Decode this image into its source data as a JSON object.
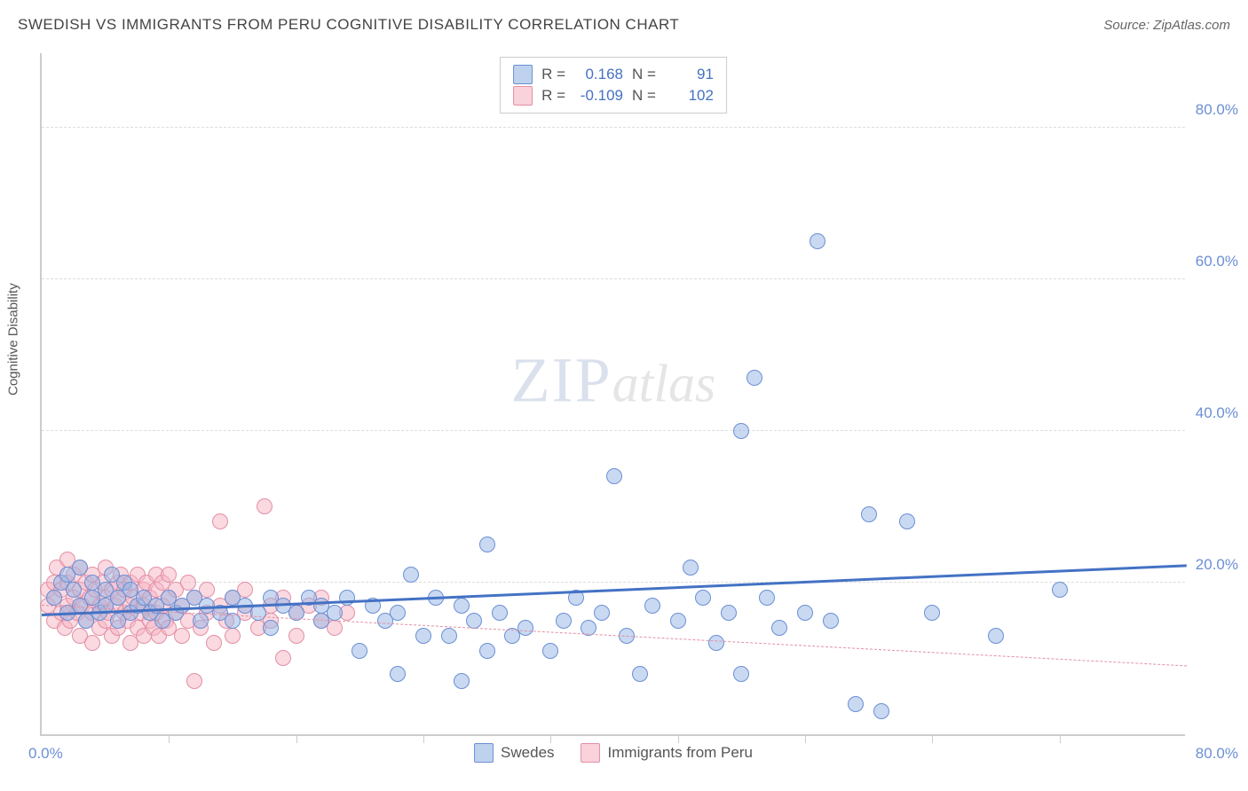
{
  "title": "SWEDISH VS IMMIGRANTS FROM PERU COGNITIVE DISABILITY CORRELATION CHART",
  "source_prefix": "Source: ",
  "source_name": "ZipAtlas.com",
  "ylabel": "Cognitive Disability",
  "watermark_zip": "ZIP",
  "watermark_atlas": "atlas",
  "chart": {
    "type": "scatter",
    "xlim": [
      0,
      90
    ],
    "ylim": [
      0,
      90
    ],
    "xtick_positions": [
      10,
      20,
      30,
      40,
      50,
      60,
      70,
      80
    ],
    "ytick_values": [
      20,
      40,
      60,
      80
    ],
    "ytick_labels": [
      "20.0%",
      "40.0%",
      "60.0%",
      "80.0%"
    ],
    "x_origin_label": "0.0%",
    "x_max_label": "80.0%",
    "background_color": "#ffffff",
    "grid_color": "#dddddd",
    "axis_color": "#cccccc",
    "label_color": "#6b8fd4",
    "text_color": "#555555",
    "title_fontsize": 17,
    "label_fontsize": 15,
    "tick_fontsize": 17,
    "marker_size": 18
  },
  "series": {
    "swedes": {
      "label": "Swedes",
      "color_fill": "rgba(147,180,227,0.5)",
      "color_stroke": "#6b8fd4",
      "trend_color": "#4472c4",
      "trend_width": 3,
      "trend_style": "solid",
      "R": "0.168",
      "N": "91",
      "trend": {
        "x1": 0,
        "y1": 15.5,
        "x2": 90,
        "y2": 22.0
      },
      "points": [
        [
          1,
          18
        ],
        [
          1.5,
          20
        ],
        [
          2,
          16
        ],
        [
          2,
          21
        ],
        [
          2.5,
          19
        ],
        [
          3,
          17
        ],
        [
          3,
          22
        ],
        [
          3.5,
          15
        ],
        [
          4,
          18
        ],
        [
          4,
          20
        ],
        [
          4.5,
          16
        ],
        [
          5,
          19
        ],
        [
          5,
          17
        ],
        [
          5.5,
          21
        ],
        [
          6,
          15
        ],
        [
          6,
          18
        ],
        [
          6.5,
          20
        ],
        [
          7,
          16
        ],
        [
          7,
          19
        ],
        [
          7.5,
          17
        ],
        [
          8,
          18
        ],
        [
          8.5,
          16
        ],
        [
          9,
          17
        ],
        [
          9.5,
          15
        ],
        [
          10,
          18
        ],
        [
          10.5,
          16
        ],
        [
          11,
          17
        ],
        [
          12,
          18
        ],
        [
          12.5,
          15
        ],
        [
          13,
          17
        ],
        [
          14,
          16
        ],
        [
          15,
          18
        ],
        [
          15,
          15
        ],
        [
          16,
          17
        ],
        [
          17,
          16
        ],
        [
          18,
          18
        ],
        [
          18,
          14
        ],
        [
          19,
          17
        ],
        [
          20,
          16
        ],
        [
          21,
          18
        ],
        [
          22,
          15
        ],
        [
          22,
          17
        ],
        [
          23,
          16
        ],
        [
          24,
          18
        ],
        [
          25,
          11
        ],
        [
          26,
          17
        ],
        [
          27,
          15
        ],
        [
          28,
          16
        ],
        [
          28,
          8
        ],
        [
          29,
          21
        ],
        [
          30,
          13
        ],
        [
          31,
          18
        ],
        [
          32,
          13
        ],
        [
          33,
          17
        ],
        [
          33,
          7
        ],
        [
          34,
          15
        ],
        [
          35,
          11
        ],
        [
          35,
          25
        ],
        [
          36,
          16
        ],
        [
          37,
          13
        ],
        [
          38,
          14
        ],
        [
          40,
          11
        ],
        [
          41,
          15
        ],
        [
          42,
          18
        ],
        [
          43,
          14
        ],
        [
          44,
          16
        ],
        [
          45,
          34
        ],
        [
          46,
          13
        ],
        [
          47,
          8
        ],
        [
          48,
          17
        ],
        [
          50,
          15
        ],
        [
          51,
          22
        ],
        [
          52,
          18
        ],
        [
          53,
          12
        ],
        [
          54,
          16
        ],
        [
          55,
          40
        ],
        [
          55,
          8
        ],
        [
          56,
          47
        ],
        [
          57,
          18
        ],
        [
          58,
          14
        ],
        [
          60,
          16
        ],
        [
          61,
          65
        ],
        [
          62,
          15
        ],
        [
          64,
          4
        ],
        [
          65,
          29
        ],
        [
          66,
          3
        ],
        [
          68,
          28
        ],
        [
          70,
          16
        ],
        [
          75,
          13
        ],
        [
          80,
          19
        ]
      ]
    },
    "peru": {
      "label": "Immigrants from Peru",
      "color_fill": "rgba(245,180,195,0.5)",
      "color_stroke": "#e38fa5",
      "trend_color": "#e38fa5",
      "trend_width": 1.5,
      "trend_style": "dashed",
      "R": "-0.109",
      "N": "102",
      "trend": {
        "x1": 0,
        "y1": 17.0,
        "x2": 90,
        "y2": 9.0
      },
      "points": [
        [
          0.5,
          17
        ],
        [
          0.5,
          19
        ],
        [
          1,
          15
        ],
        [
          1,
          18
        ],
        [
          1,
          20
        ],
        [
          1.2,
          22
        ],
        [
          1.5,
          16
        ],
        [
          1.5,
          19
        ],
        [
          1.8,
          14
        ],
        [
          2,
          17
        ],
        [
          2,
          20
        ],
        [
          2,
          23
        ],
        [
          2.2,
          15
        ],
        [
          2.5,
          18
        ],
        [
          2.5,
          21
        ],
        [
          2.8,
          16
        ],
        [
          3,
          19
        ],
        [
          3,
          13
        ],
        [
          3,
          22
        ],
        [
          3.2,
          17
        ],
        [
          3.5,
          15
        ],
        [
          3.5,
          20
        ],
        [
          3.8,
          18
        ],
        [
          4,
          16
        ],
        [
          4,
          21
        ],
        [
          4,
          12
        ],
        [
          4.2,
          19
        ],
        [
          4.5,
          17
        ],
        [
          4.5,
          14
        ],
        [
          4.8,
          20
        ],
        [
          5,
          18
        ],
        [
          5,
          15
        ],
        [
          5,
          22
        ],
        [
          5.2,
          16
        ],
        [
          5.5,
          19
        ],
        [
          5.5,
          13
        ],
        [
          5.8,
          17
        ],
        [
          6,
          20
        ],
        [
          6,
          14
        ],
        [
          6,
          18
        ],
        [
          6.2,
          21
        ],
        [
          6.5,
          16
        ],
        [
          6.5,
          19
        ],
        [
          6.8,
          15
        ],
        [
          7,
          17
        ],
        [
          7,
          20
        ],
        [
          7,
          12
        ],
        [
          7.2,
          18
        ],
        [
          7.5,
          14
        ],
        [
          7.5,
          21
        ],
        [
          7.8,
          16
        ],
        [
          8,
          19
        ],
        [
          8,
          13
        ],
        [
          8,
          17
        ],
        [
          8.2,
          20
        ],
        [
          8.5,
          15
        ],
        [
          8.5,
          18
        ],
        [
          8.8,
          14
        ],
        [
          9,
          21
        ],
        [
          9,
          16
        ],
        [
          9,
          19
        ],
        [
          9.2,
          13
        ],
        [
          9.5,
          17
        ],
        [
          9.5,
          20
        ],
        [
          9.8,
          15
        ],
        [
          10,
          18
        ],
        [
          10,
          14
        ],
        [
          10,
          21
        ],
        [
          10.5,
          16
        ],
        [
          10.5,
          19
        ],
        [
          11,
          13
        ],
        [
          11,
          17
        ],
        [
          11.5,
          20
        ],
        [
          11.5,
          15
        ],
        [
          12,
          18
        ],
        [
          12,
          7
        ],
        [
          12.5,
          14
        ],
        [
          13,
          16
        ],
        [
          13,
          19
        ],
        [
          13.5,
          12
        ],
        [
          14,
          28
        ],
        [
          14,
          17
        ],
        [
          14.5,
          15
        ],
        [
          15,
          18
        ],
        [
          15,
          13
        ],
        [
          16,
          16
        ],
        [
          16,
          19
        ],
        [
          17,
          14
        ],
        [
          17.5,
          30
        ],
        [
          18,
          17
        ],
        [
          18,
          15
        ],
        [
          19,
          18
        ],
        [
          19,
          10
        ],
        [
          20,
          16
        ],
        [
          20,
          13
        ],
        [
          21,
          17
        ],
        [
          22,
          15
        ],
        [
          22,
          18
        ],
        [
          23,
          14
        ],
        [
          24,
          16
        ]
      ]
    }
  },
  "stat_box": {
    "r_label": "R =",
    "n_label": "N ="
  },
  "bottom_legend": {
    "swedes": "Swedes",
    "peru": "Immigrants from Peru"
  }
}
